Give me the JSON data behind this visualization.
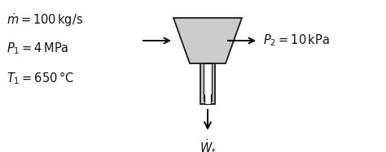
{
  "bg_color": "#ffffff",
  "turbine_fill": "#cccccc",
  "turbine_edge": "#1a1a1a",
  "shaft_fill": "#cccccc",
  "shaft_fill_inner": "#ffffff",
  "arrow_color": "#000000",
  "text_color": "#111111",
  "mdot_label": "$\\dot{m} = 100\\,\\mathrm{kg/s}$",
  "P1_label": "$P_1 = 4\\,\\mathrm{MPa}$",
  "T1_label": "$T_1 = 650\\,°\\mathrm{C}$",
  "P2_label": "$P_2 = 10\\,\\mathrm{kPa}$",
  "Wdot_label": "$\\dot{W}_t$",
  "font_size": 10.5,
  "figw": 4.74,
  "figh": 1.87,
  "dpi": 100
}
